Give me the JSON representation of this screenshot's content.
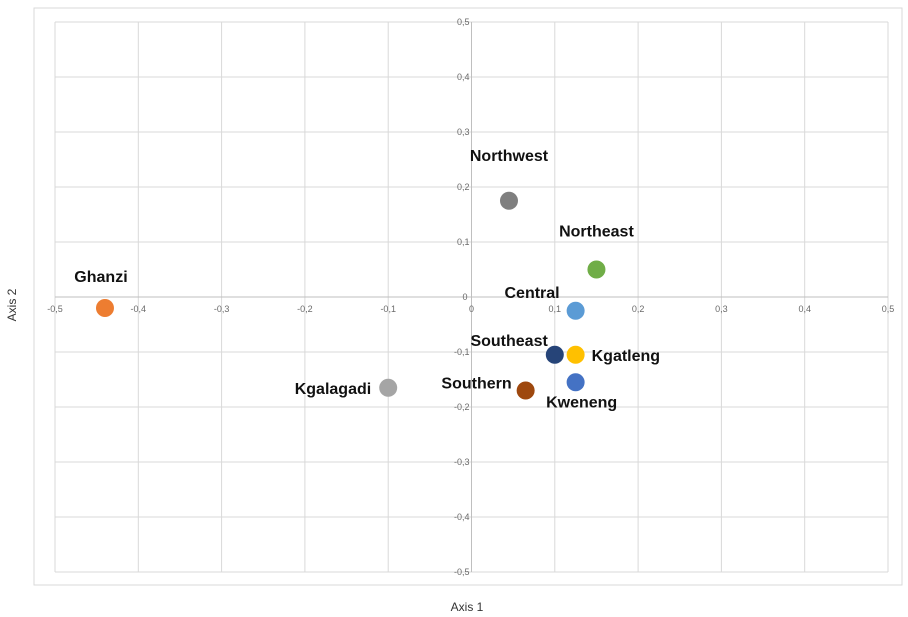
{
  "chart_data": {
    "type": "scatter",
    "title": "",
    "xlabel": "Axis 1",
    "ylabel": "Axis 2",
    "xlim": [
      -0.5,
      0.5
    ],
    "ylim": [
      -0.5,
      0.5
    ],
    "xticks": [
      -0.5,
      -0.4,
      -0.3,
      -0.2,
      -0.1,
      0,
      0.1,
      0.2,
      0.3,
      0.4,
      0.5
    ],
    "yticks": [
      0.5,
      0.4,
      0.3,
      0.2,
      0.1,
      0,
      -0.1,
      -0.2,
      -0.3,
      -0.4,
      -0.5
    ],
    "xtick_labels": [
      "-0,5",
      "-0,4",
      "-0,3",
      "-0,2",
      "-0,1",
      "0",
      "0,1",
      "0,2",
      "0,3",
      "0,4",
      "0,5"
    ],
    "ytick_labels": [
      "0,5",
      "0,4",
      "0,3",
      "0,2",
      "0,1",
      "0",
      "-0,1",
      "-0,2",
      "-0,3",
      "-0,4",
      "-0,5"
    ],
    "grid": true,
    "legend": "none",
    "points": [
      {
        "label": "Northwest",
        "x": 0.045,
        "y": 0.175,
        "color": "#7f7f7f",
        "label_pos": "above"
      },
      {
        "label": "Northeast",
        "x": 0.15,
        "y": 0.05,
        "color": "#70ad47",
        "label_pos": "above"
      },
      {
        "label": "Ghanzi",
        "x": -0.44,
        "y": -0.02,
        "color": "#ed7d31",
        "label_pos": "above"
      },
      {
        "label": "Central",
        "x": 0.125,
        "y": -0.025,
        "color": "#5b9bd5",
        "label_pos": "left"
      },
      {
        "label": "Southeast",
        "x": 0.1,
        "y": -0.105,
        "color": "#264478",
        "label_pos": "upper-left"
      },
      {
        "label": "Kgatleng",
        "x": 0.125,
        "y": -0.105,
        "color": "#ffc000",
        "label_pos": "right"
      },
      {
        "label": "Kweneng",
        "x": 0.125,
        "y": -0.155,
        "color": "#4472c4",
        "label_pos": "below"
      },
      {
        "label": "Southern",
        "x": 0.065,
        "y": -0.17,
        "color": "#9e480e",
        "label_pos": "left"
      },
      {
        "label": "Kgalagadi",
        "x": -0.1,
        "y": -0.165,
        "color": "#a5a5a5",
        "label_pos": "left"
      }
    ]
  }
}
